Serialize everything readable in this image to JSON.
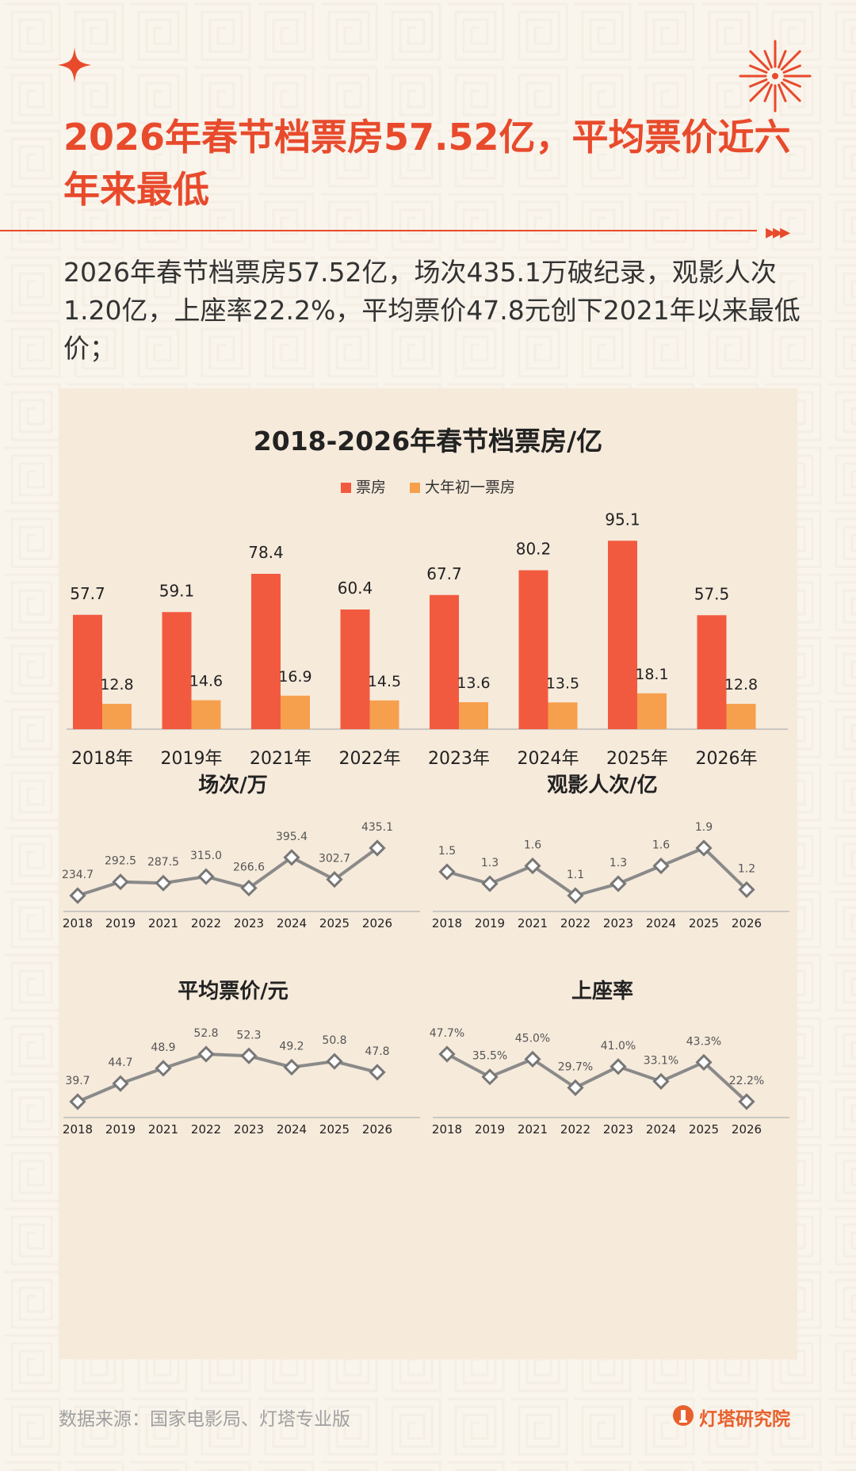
{
  "header": {
    "title": "2026年春节档票房57.52亿，平均票价近六年来最低",
    "summary": "2026年春节档票房57.52亿，场次435.1万破纪录，观影人次1.20亿，上座率22.2%，平均票价47.8元创下2021年以来最低价；"
  },
  "colors": {
    "accent": "#e84a2c",
    "bar_main": "#f25a3f",
    "bar_sub": "#f6a04d",
    "line": "#8a8a8a"
  },
  "chart_data": [
    {
      "type": "bar",
      "title": "2018-2026年春节档票房/亿",
      "categories": [
        "2018年",
        "2019年",
        "2021年",
        "2022年",
        "2023年",
        "2024年",
        "2025年",
        "2026年"
      ],
      "series": [
        {
          "name": "票房",
          "values": [
            57.7,
            59.1,
            78.4,
            60.4,
            67.7,
            80.2,
            95.1,
            57.5
          ]
        },
        {
          "name": "大年初一票房",
          "values": [
            12.8,
            14.6,
            16.9,
            14.5,
            13.6,
            13.5,
            18.1,
            12.8
          ]
        }
      ],
      "ylim": [
        0,
        100
      ]
    },
    {
      "type": "line",
      "title": "场次/万",
      "categories": [
        "2018",
        "2019",
        "2021",
        "2022",
        "2023",
        "2024",
        "2025",
        "2026"
      ],
      "values": [
        234.7,
        292.5,
        287.5,
        315.0,
        266.6,
        395.4,
        302.7,
        435.1
      ],
      "labels": [
        "234.7",
        "292.5",
        "287.5",
        "315.0",
        "266.6",
        "395.4",
        "302.7",
        "435.1"
      ]
    },
    {
      "type": "line",
      "title": "观影人次/亿",
      "categories": [
        "2018",
        "2019",
        "2021",
        "2022",
        "2023",
        "2024",
        "2025",
        "2026"
      ],
      "values": [
        1.5,
        1.3,
        1.6,
        1.1,
        1.3,
        1.6,
        1.9,
        1.2
      ],
      "labels": [
        "1.5",
        "1.3",
        "1.6",
        "1.1",
        "1.3",
        "1.6",
        "1.9",
        "1.2"
      ]
    },
    {
      "type": "line",
      "title": "平均票价/元",
      "categories": [
        "2018",
        "2019",
        "2021",
        "2022",
        "2023",
        "2024",
        "2025",
        "2026"
      ],
      "values": [
        39.7,
        44.7,
        48.9,
        52.8,
        52.3,
        49.2,
        50.8,
        47.8
      ],
      "labels": [
        "39.7",
        "44.7",
        "48.9",
        "52.8",
        "52.3",
        "49.2",
        "50.8",
        "47.8"
      ]
    },
    {
      "type": "line",
      "title": "上座率",
      "categories": [
        "2018",
        "2019",
        "2021",
        "2022",
        "2023",
        "2024",
        "2025",
        "2026"
      ],
      "values": [
        47.7,
        35.5,
        45.0,
        29.7,
        41.0,
        33.1,
        43.3,
        22.2
      ],
      "labels": [
        "47.7%",
        "35.5%",
        "45.0%",
        "29.7%",
        "41.0%",
        "33.1%",
        "43.3%",
        "22.2%"
      ]
    }
  ],
  "footer": {
    "source": "数据来源：国家电影局、灯塔专业版",
    "brand": "灯塔研究院"
  }
}
